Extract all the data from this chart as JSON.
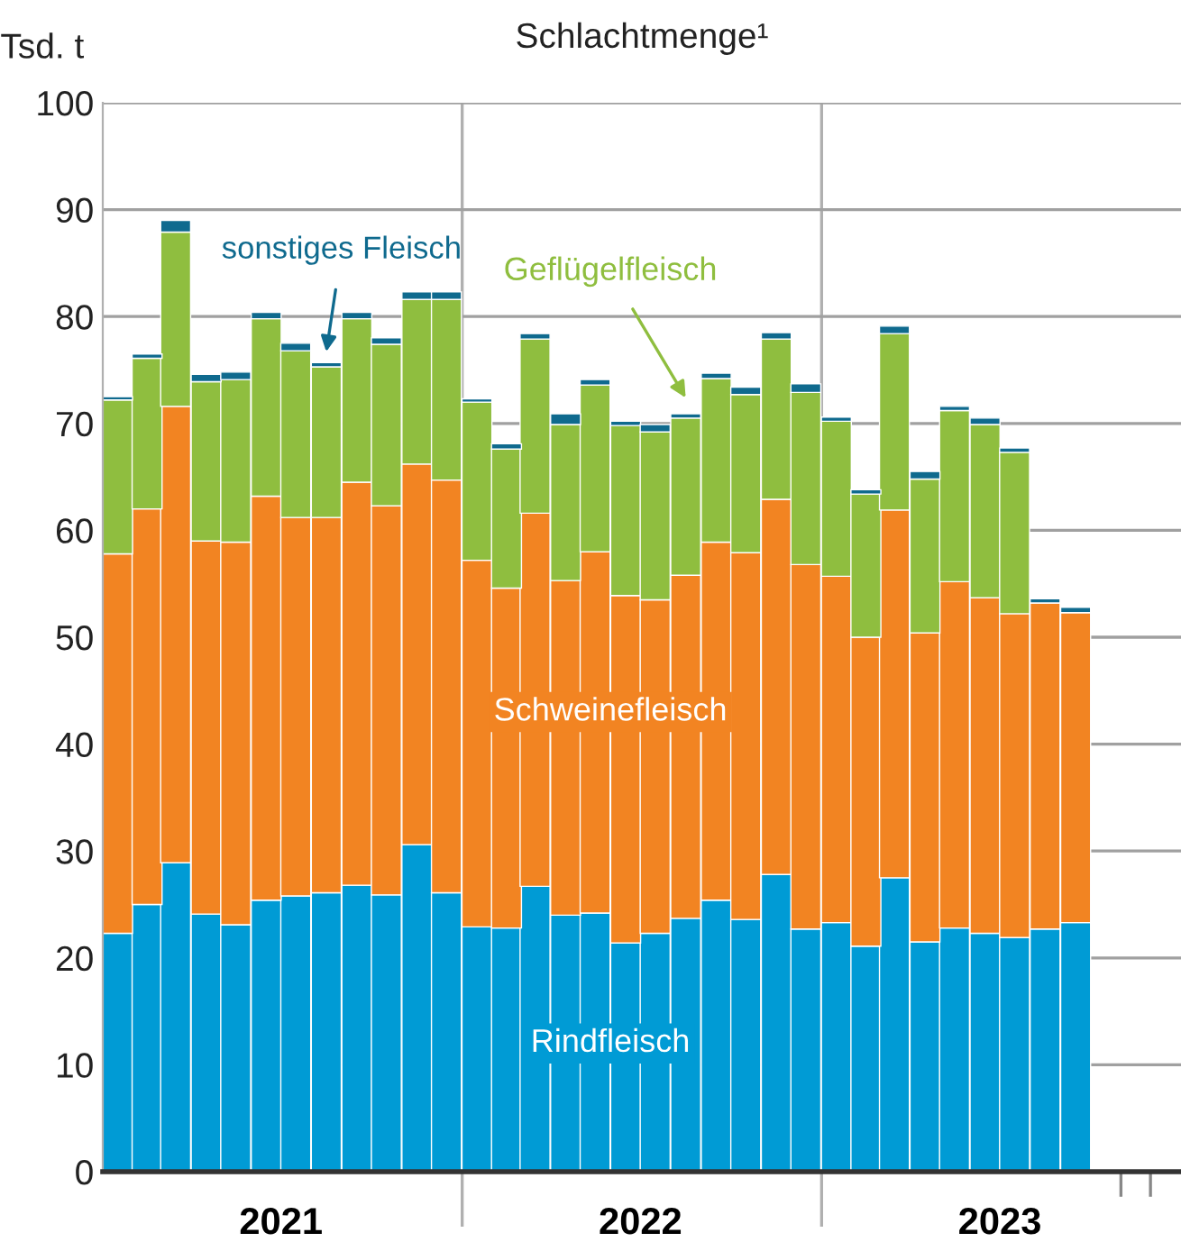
{
  "chart_data": {
    "type": "bar",
    "stacked": true,
    "title": "Schlachtmenge¹",
    "ylabel": "Tsd. t",
    "x": [
      "2021-01-16",
      "2021-02-15",
      "2021-03-16",
      "2021-04-16",
      "2021-05-16",
      "2021-06-16",
      "2021-07-16",
      "2021-08-16",
      "2021-09-16",
      "2021-10-16",
      "2021-11-16",
      "2021-12-16",
      "2022-01-16",
      "2022-02-15",
      "2022-03-16",
      "2022-04-16",
      "2022-05-16",
      "2022-06-16",
      "2022-07-16",
      "2022-08-16",
      "2022-09-16",
      "2022-10-16",
      "2022-11-16",
      "2022-12-16",
      "2023-01-16",
      "2023-02-15",
      "2023-03-16",
      "2023-04-16",
      "2023-05-16",
      "2023-06-16",
      "2023-07-16",
      "2023-08-16",
      "2023-09-16"
    ],
    "xlim": [
      "2021-01-01",
      "2024-01-01"
    ],
    "xticks": [
      {
        "value": "2021-07-01",
        "label": "2021"
      },
      {
        "value": "2022-07-01",
        "label": "2022"
      },
      {
        "value": "2023-07-01",
        "label": "2023"
      },
      {
        "value": "2023-11-01",
        "label": null
      },
      {
        "value": "2023-12-01",
        "label": null
      }
    ],
    "ylim": [
      0,
      100
    ],
    "yticks": [
      0,
      10,
      20,
      30,
      40,
      50,
      60,
      70,
      80,
      90,
      100
    ],
    "grid": "y",
    "legend": false,
    "ref_lines": [
      {
        "axis": "x",
        "value": "2022-01-01",
        "color": "#b0b0b0"
      },
      {
        "axis": "x",
        "value": "2023-01-01",
        "color": "#b0b0b0"
      }
    ],
    "series": [
      {
        "name": "Rindfleisch",
        "color": "#009bd5",
        "values": [
          22.3,
          25.0,
          28.9,
          24.1,
          23.1,
          25.4,
          25.8,
          26.1,
          26.8,
          25.9,
          30.6,
          26.1,
          22.9,
          22.8,
          26.7,
          24.0,
          24.2,
          21.4,
          22.3,
          23.7,
          25.4,
          23.6,
          27.8,
          22.7,
          23.3,
          21.1,
          27.5,
          21.5,
          22.8,
          22.3,
          21.9,
          22.7,
          23.3
        ]
      },
      {
        "name": "Schweinefleisch",
        "color": "#f28422",
        "values": [
          35.5,
          37.0,
          42.7,
          34.9,
          35.8,
          37.8,
          35.4,
          35.1,
          37.7,
          36.4,
          35.6,
          38.6,
          34.3,
          31.8,
          34.9,
          31.3,
          33.8,
          32.5,
          31.2,
          32.1,
          33.5,
          34.3,
          35.1,
          34.1,
          32.4,
          28.9,
          34.4,
          28.9,
          32.4,
          31.4,
          30.3,
          30.5,
          29.0
        ]
      },
      {
        "name": "Geflügelfleisch",
        "color": "#8fbe3f",
        "values": [
          14.4,
          14.1,
          16.3,
          14.9,
          15.2,
          16.6,
          15.6,
          14.1,
          15.3,
          15.1,
          15.4,
          16.9,
          14.8,
          13.0,
          16.3,
          14.6,
          15.6,
          15.9,
          15.7,
          14.7,
          15.3,
          14.8,
          15.0,
          16.1,
          14.5,
          13.4,
          16.5,
          14.4,
          16.0,
          16.2,
          15.1,
          null,
          null
        ]
      },
      {
        "name": "sonstiges Fleisch",
        "color": "#0f6a8e",
        "values": [
          0.3,
          0.4,
          1.1,
          0.7,
          0.7,
          0.6,
          0.7,
          0.4,
          0.6,
          0.6,
          0.7,
          0.7,
          0.3,
          0.5,
          0.5,
          1.0,
          0.5,
          0.4,
          0.7,
          0.4,
          0.5,
          0.7,
          0.6,
          0.8,
          0.4,
          0.4,
          0.7,
          0.7,
          0.4,
          0.6,
          0.4,
          0.4,
          0.5
        ]
      }
    ]
  }
}
